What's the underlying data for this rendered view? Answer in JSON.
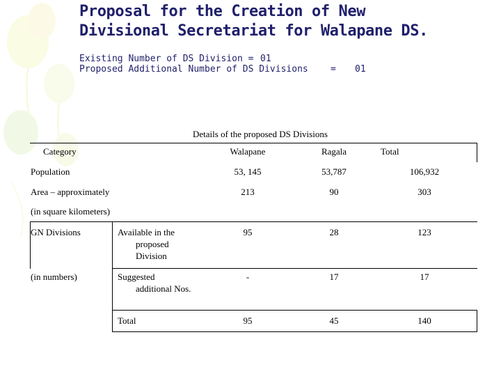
{
  "title": {
    "line1": "Proposal for the Creation of New",
    "line2": "Divisional Secretariat for Walapane DS."
  },
  "info": {
    "existing_label": "Existing Number of DS Division =",
    "existing_value": "01",
    "proposed_label": "Proposed Additional Number of DS Divisions",
    "proposed_eq": "=",
    "proposed_value": "01"
  },
  "table": {
    "caption": "Details of the proposed DS Divisions",
    "headers": {
      "category": "Category",
      "col1": "Walapane",
      "col2": "Ragala",
      "col3": "Total"
    },
    "population": {
      "label": "Population",
      "v1": "53, 145",
      "v2": "53,787",
      "v3": "106,932"
    },
    "area": {
      "label": "Area – approximately",
      "sublabel": "(in square kilometers)",
      "v1": "213",
      "v2": "90",
      "v3": "303"
    },
    "gn": {
      "label": "GN Divisions",
      "sublabel": "(in numbers)",
      "rows": [
        {
          "label_line1": "Available in the",
          "label_line2": "proposed",
          "label_line3": "Division",
          "v1": "95",
          "v2": "28",
          "v3": "123"
        },
        {
          "label_line1": "Suggested",
          "label_line2": "additional Nos.",
          "v1": "-",
          "v2": "17",
          "v3": "17"
        },
        {
          "label_line1": "Total",
          "v1": "95",
          "v2": "45",
          "v3": "140"
        }
      ]
    }
  }
}
